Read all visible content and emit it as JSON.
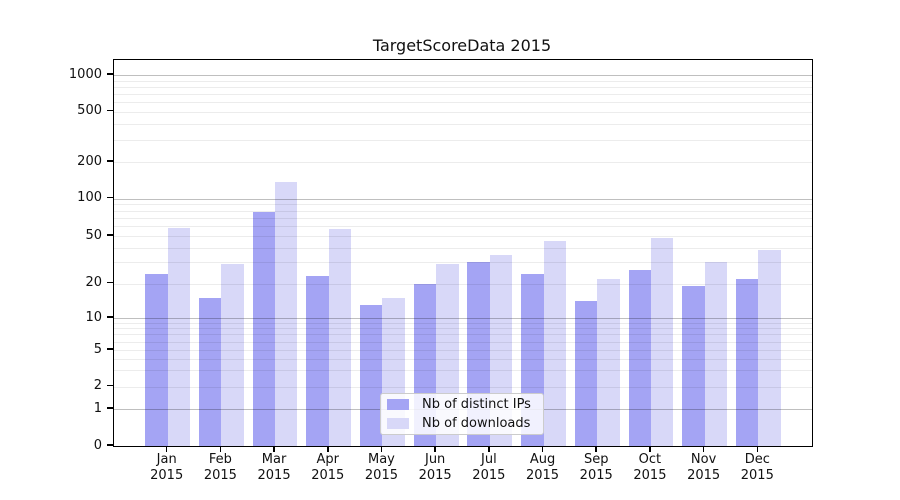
{
  "chart_data": {
    "type": "bar",
    "title": "TargetScoreData 2015",
    "categories": [
      "Jan",
      "Feb",
      "Mar",
      "Apr",
      "May",
      "Jun",
      "Jul",
      "Aug",
      "Sep",
      "Oct",
      "Nov",
      "Dec"
    ],
    "category_year": "2015",
    "series": [
      {
        "name": "Nb of distinct IPs",
        "color": "#a4a4f4",
        "values": [
          24,
          15,
          78,
          23,
          13,
          20,
          30,
          24,
          14,
          26,
          19,
          22
        ]
      },
      {
        "name": "Nb of downloads",
        "color": "#d8d8f8",
        "values": [
          58,
          29,
          138,
          57,
          15,
          29,
          35,
          45,
          22,
          48,
          30,
          38
        ]
      }
    ],
    "y_axis": {
      "scale": "symlog",
      "ticks": [
        0,
        1,
        2,
        5,
        10,
        20,
        50,
        100,
        200,
        500,
        1000
      ],
      "minor_gridlines": [
        3,
        4,
        6,
        7,
        8,
        9,
        30,
        40,
        60,
        70,
        80,
        90,
        300,
        400,
        600,
        700,
        800,
        900
      ],
      "major_gridlines": [
        1,
        10,
        100,
        1000
      ]
    },
    "xlabel": "",
    "ylabel": "",
    "grid": true,
    "legend_position": "lower center"
  }
}
